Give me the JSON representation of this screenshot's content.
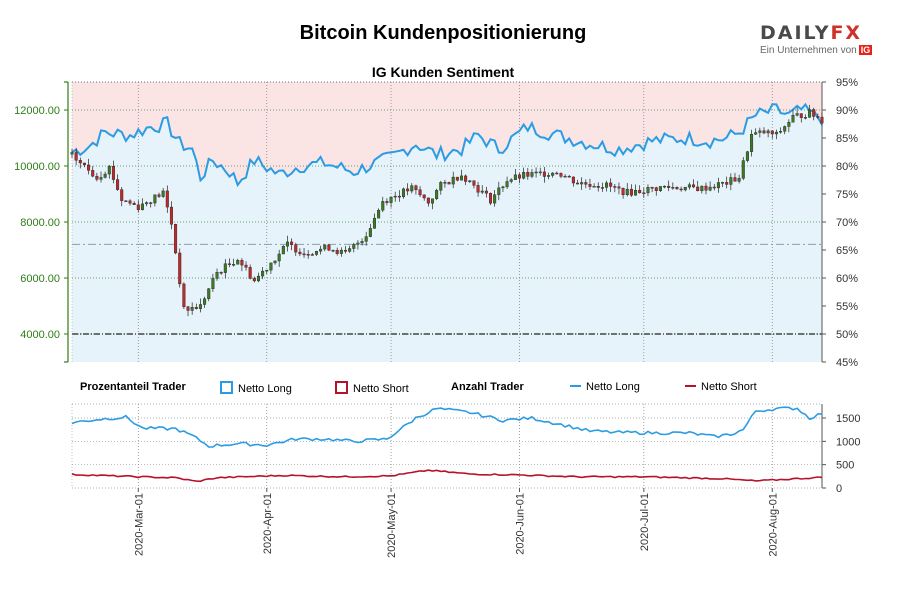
{
  "page": {
    "title": "Bitcoin Kundenpositionierung",
    "subtitle": "IG Kunden Sentiment",
    "logo": {
      "text_main": "DAILY",
      "text_accent": "FX",
      "tagline": "Ein Unternehmen von",
      "badge": "IG"
    }
  },
  "legend": {
    "group1_title": "Prozentanteil Trader",
    "group1_long": "Netto Long",
    "group1_short": "Netto Short",
    "group2_title": "Anzahl Trader",
    "group2_long": "Netto Long",
    "group2_short": "Netto Short"
  },
  "colors": {
    "long": "#2b9ce3",
    "short": "#b8122a",
    "long_fill": "#e6f3fb",
    "short_fill": "#fbe4e4",
    "candle_up": "#3c7a24",
    "candle_down": "#c0282a",
    "price_axis": "#2e7d17"
  },
  "chart_data": [
    {
      "type": "candlestick",
      "name": "price_and_sentiment",
      "title": "IG Kunden Sentiment",
      "x_range": [
        "2020-02-14",
        "2020-08-13"
      ],
      "x_ticks": [
        "2020-Mar-01",
        "2020-Apr-01",
        "2020-May-01",
        "2020-Jun-01",
        "2020-Jul-01",
        "2020-Aug-01"
      ],
      "y_left": {
        "range": [
          3000,
          13000
        ],
        "ticks": [
          "4000.00",
          "6000.00",
          "8000.00",
          "10000.00",
          "12000.00"
        ]
      },
      "y_right": {
        "range": [
          45,
          95
        ],
        "ticks": [
          "45%",
          "50%",
          "55%",
          "60%",
          "65%",
          "70%",
          "75%",
          "80%",
          "85%",
          "90%",
          "95%"
        ],
        "reference_lines": [
          50,
          66
        ]
      },
      "close_anchors": [
        [
          "2020-02-14",
          10360
        ],
        [
          "2020-02-20",
          9600
        ],
        [
          "2020-02-23",
          9950
        ],
        [
          "2020-02-26",
          8800
        ],
        [
          "2020-03-01",
          8550
        ],
        [
          "2020-03-07",
          9050
        ],
        [
          "2020-03-09",
          7950
        ],
        [
          "2020-03-12",
          4850
        ],
        [
          "2020-03-16",
          5000
        ],
        [
          "2020-03-20",
          6200
        ],
        [
          "2020-03-25",
          6700
        ],
        [
          "2020-03-29",
          5900
        ],
        [
          "2020-04-06",
          7200
        ],
        [
          "2020-04-10",
          6900
        ],
        [
          "2020-04-16",
          7100
        ],
        [
          "2020-04-20",
          6850
        ],
        [
          "2020-04-25",
          7550
        ],
        [
          "2020-04-29",
          8750
        ],
        [
          "2020-05-06",
          9200
        ],
        [
          "2020-05-10",
          8700
        ],
        [
          "2020-05-13",
          9300
        ],
        [
          "2020-05-18",
          9700
        ],
        [
          "2020-05-25",
          8800
        ],
        [
          "2020-05-29",
          9500
        ],
        [
          "2020-06-02",
          9650
        ],
        [
          "2020-06-10",
          9800
        ],
        [
          "2020-06-15",
          9400
        ],
        [
          "2020-06-22",
          9300
        ],
        [
          "2020-06-27",
          9050
        ],
        [
          "2020-07-06",
          9250
        ],
        [
          "2020-07-15",
          9200
        ],
        [
          "2020-07-21",
          9400
        ],
        [
          "2020-07-24",
          9600
        ],
        [
          "2020-07-27",
          11100
        ],
        [
          "2020-07-30",
          11200
        ],
        [
          "2020-08-02",
          11100
        ],
        [
          "2020-08-06",
          11750
        ],
        [
          "2020-08-10",
          11900
        ],
        [
          "2020-08-13",
          11650
        ]
      ],
      "pct_long_anchors": [
        [
          "2020-02-14",
          82.5
        ],
        [
          "2020-02-18",
          83.5
        ],
        [
          "2020-02-22",
          86
        ],
        [
          "2020-02-28",
          85.5
        ],
        [
          "2020-03-04",
          87
        ],
        [
          "2020-03-08",
          87.5
        ],
        [
          "2020-03-11",
          84
        ],
        [
          "2020-03-14",
          83
        ],
        [
          "2020-03-16",
          78
        ],
        [
          "2020-03-19",
          81
        ],
        [
          "2020-03-23",
          79
        ],
        [
          "2020-03-25",
          77
        ],
        [
          "2020-03-29",
          81
        ],
        [
          "2020-04-04",
          78.5
        ],
        [
          "2020-04-09",
          80
        ],
        [
          "2020-04-15",
          80.5
        ],
        [
          "2020-04-22",
          79
        ],
        [
          "2020-05-01",
          81.5
        ],
        [
          "2020-05-07",
          84
        ],
        [
          "2020-05-12",
          82
        ],
        [
          "2020-05-18",
          83
        ],
        [
          "2020-05-22",
          85.5
        ],
        [
          "2020-05-27",
          83
        ],
        [
          "2020-06-03",
          87
        ],
        [
          "2020-06-10",
          85.5
        ],
        [
          "2020-06-18",
          84
        ],
        [
          "2020-06-25",
          83
        ],
        [
          "2020-07-03",
          84.5
        ],
        [
          "2020-07-11",
          85
        ],
        [
          "2020-07-17",
          84.5
        ],
        [
          "2020-07-21",
          85
        ],
        [
          "2020-07-24",
          86
        ],
        [
          "2020-07-28",
          89
        ],
        [
          "2020-08-02",
          90
        ],
        [
          "2020-08-05",
          89
        ],
        [
          "2020-08-08",
          90
        ],
        [
          "2020-08-13",
          88.5
        ]
      ]
    },
    {
      "type": "line",
      "name": "trader_count",
      "x_range": [
        "2020-02-14",
        "2020-08-13"
      ],
      "y_range": [
        0,
        1800
      ],
      "y_ticks": [
        "0",
        "500",
        "1000",
        "1500"
      ],
      "series": [
        {
          "name": "Netto Long",
          "anchors": [
            [
              "2020-02-14",
              1400
            ],
            [
              "2020-02-20",
              1470
            ],
            [
              "2020-02-27",
              1520
            ],
            [
              "2020-03-02",
              1280
            ],
            [
              "2020-03-10",
              1270
            ],
            [
              "2020-03-14",
              1120
            ],
            [
              "2020-03-18",
              900
            ],
            [
              "2020-03-25",
              950
            ],
            [
              "2020-04-01",
              920
            ],
            [
              "2020-04-08",
              1050
            ],
            [
              "2020-04-15",
              1050
            ],
            [
              "2020-04-22",
              1000
            ],
            [
              "2020-04-30",
              1050
            ],
            [
              "2020-05-07",
              1500
            ],
            [
              "2020-05-12",
              1700
            ],
            [
              "2020-05-20",
              1620
            ],
            [
              "2020-05-28",
              1450
            ],
            [
              "2020-06-04",
              1500
            ],
            [
              "2020-06-10",
              1380
            ],
            [
              "2020-06-18",
              1220
            ],
            [
              "2020-06-25",
              1190
            ],
            [
              "2020-07-05",
              1180
            ],
            [
              "2020-07-12",
              1180
            ],
            [
              "2020-07-18",
              1100
            ],
            [
              "2020-07-22",
              1150
            ],
            [
              "2020-07-25",
              1250
            ],
            [
              "2020-07-28",
              1650
            ],
            [
              "2020-08-02",
              1700
            ],
            [
              "2020-08-07",
              1710
            ],
            [
              "2020-08-10",
              1500
            ],
            [
              "2020-08-13",
              1600
            ]
          ]
        },
        {
          "name": "Netto Short",
          "anchors": [
            [
              "2020-02-14",
              290
            ],
            [
              "2020-03-01",
              240
            ],
            [
              "2020-03-10",
              220
            ],
            [
              "2020-03-15",
              140
            ],
            [
              "2020-03-20",
              220
            ],
            [
              "2020-04-05",
              270
            ],
            [
              "2020-04-20",
              240
            ],
            [
              "2020-05-01",
              260
            ],
            [
              "2020-05-10",
              380
            ],
            [
              "2020-05-20",
              300
            ],
            [
              "2020-06-01",
              280
            ],
            [
              "2020-06-15",
              240
            ],
            [
              "2020-07-01",
              240
            ],
            [
              "2020-07-20",
              200
            ],
            [
              "2020-07-28",
              150
            ],
            [
              "2020-08-05",
              190
            ],
            [
              "2020-08-13",
              230
            ]
          ]
        }
      ]
    }
  ]
}
